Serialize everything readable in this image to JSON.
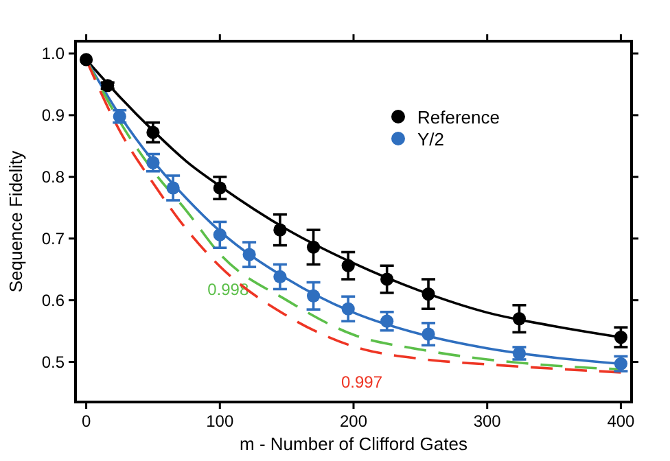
{
  "chart_data": {
    "type": "scatter",
    "xlabel": "m - Number of Clifford Gates",
    "ylabel": "Sequence Fidelity",
    "xlim": [
      -8,
      408
    ],
    "ylim": [
      0.435,
      1.02
    ],
    "xticks": [
      0,
      100,
      200,
      300,
      400
    ],
    "yticks": [
      0.5,
      0.6,
      0.7,
      0.8,
      0.9,
      {
        "value": 1,
        "label": "1.0"
      }
    ],
    "legend": "top right",
    "grid": false,
    "marker": "circle",
    "series": [
      {
        "name": "Reference",
        "color": "#000000",
        "x": [
          0,
          16,
          50,
          100,
          145,
          170,
          196,
          225,
          256,
          324,
          400
        ],
        "values": [
          0.99,
          0.948,
          0.872,
          0.782,
          0.714,
          0.686,
          0.656,
          0.634,
          0.61,
          0.57,
          0.54
        ],
        "errors": [
          null,
          0.005,
          0.016,
          0.018,
          0.025,
          0.028,
          0.022,
          0.022,
          0.024,
          0.022,
          0.016
        ]
      },
      {
        "name": "Y/2",
        "color": "#2f6fbf",
        "x": [
          25,
          50,
          65,
          100,
          122,
          145,
          170,
          196,
          225,
          256,
          324,
          400
        ],
        "values": [
          0.898,
          0.823,
          0.782,
          0.706,
          0.674,
          0.638,
          0.607,
          0.586,
          0.566,
          0.545,
          0.514,
          0.497
        ],
        "errors": [
          0.01,
          0.014,
          0.02,
          0.021,
          0.02,
          0.02,
          0.022,
          0.02,
          0.015,
          0.018,
          0.01,
          0.012
        ]
      },
      {
        "type": "line",
        "color": "#000000",
        "line_style": "solid",
        "marker": "none",
        "x": [
          0,
          25,
          50,
          75,
          100,
          150,
          200,
          250,
          300,
          350,
          400
        ],
        "values": [
          0.99,
          0.93,
          0.875,
          0.825,
          0.785,
          0.715,
          0.66,
          0.615,
          0.58,
          0.558,
          0.54
        ]
      },
      {
        "type": "line",
        "color": "#2f6fbf",
        "line_style": "solid",
        "marker": "none",
        "x": [
          0,
          25,
          50,
          75,
          100,
          150,
          200,
          250,
          300,
          350,
          400
        ],
        "values": [
          0.99,
          0.9,
          0.826,
          0.765,
          0.712,
          0.635,
          0.58,
          0.545,
          0.522,
          0.507,
          0.497
        ]
      },
      {
        "type": "line",
        "name": "0.998",
        "color": "#5cbf4a",
        "line_style": "dashed",
        "marker": "none",
        "x": [
          0,
          25,
          50,
          75,
          100,
          150,
          200,
          250,
          300,
          350,
          400
        ],
        "values": [
          0.99,
          0.89,
          0.81,
          0.745,
          0.675,
          0.6,
          0.544,
          0.52,
          0.504,
          0.494,
          0.488
        ]
      },
      {
        "type": "line",
        "name": "0.997",
        "color": "#ee3524",
        "line_style": "dashed",
        "marker": "none",
        "x": [
          0,
          25,
          50,
          75,
          100,
          150,
          200,
          250,
          300,
          350,
          400
        ],
        "values": [
          0.99,
          0.875,
          0.79,
          0.715,
          0.655,
          0.575,
          0.525,
          0.505,
          0.496,
          0.489,
          0.483
        ]
      }
    ]
  }
}
